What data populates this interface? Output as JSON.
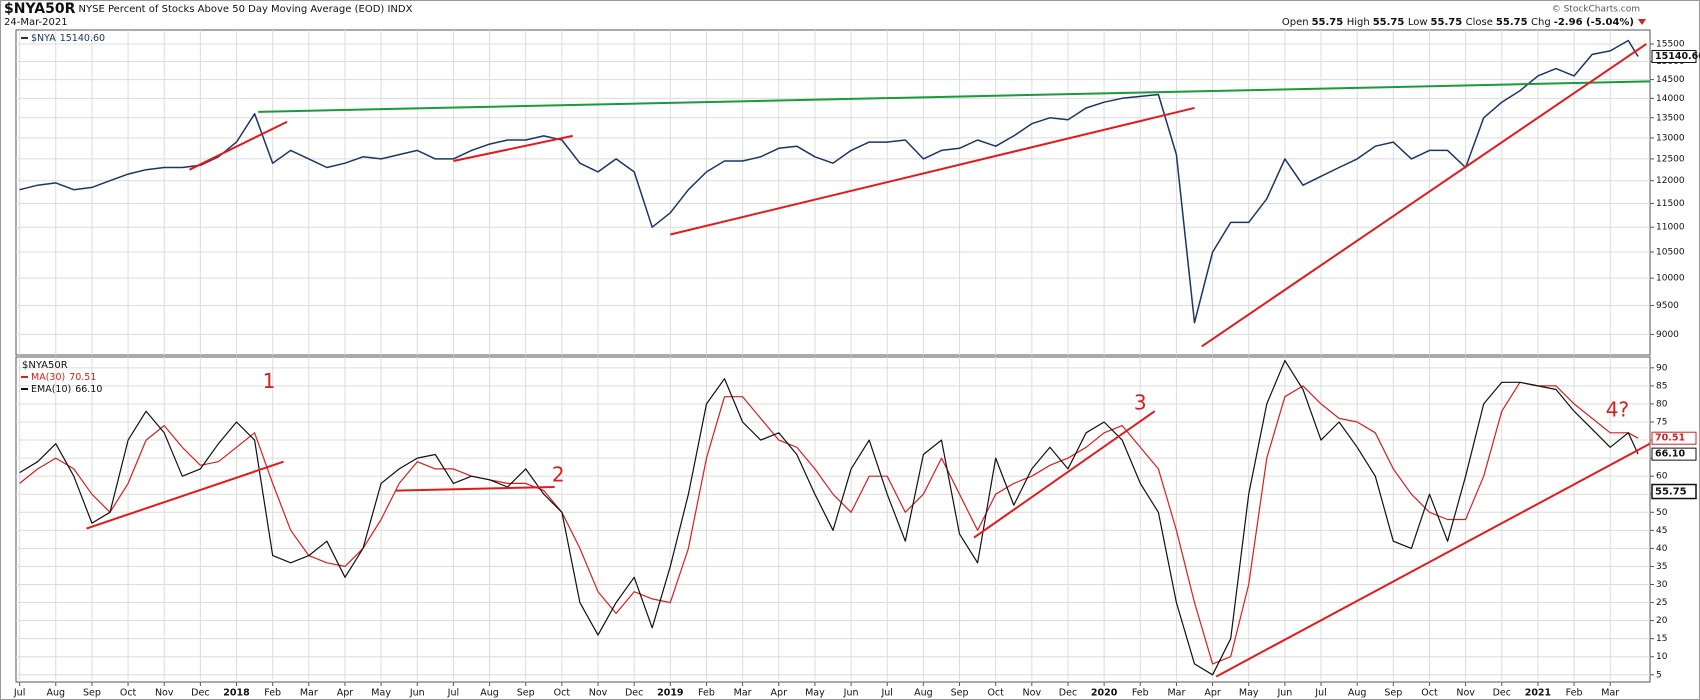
{
  "header": {
    "symbol": "$NYA50R",
    "description": "NYSE Percent of Stocks Above 50 Day Moving Average (EOD)",
    "exchange": "INDX",
    "date": "24-Mar-2021",
    "quote": [
      {
        "label": "Open",
        "value": 55.75
      },
      {
        "label": "High",
        "value": 55.75
      },
      {
        "label": "Low",
        "value": 55.75
      },
      {
        "label": "Close",
        "value": 55.75
      },
      {
        "label": "Chg",
        "value": "-2.96 (-5.04%)"
      }
    ],
    "credit": "© StockCharts.com"
  },
  "chart_data": [
    {
      "type": "line",
      "log_scale": true,
      "grid": true,
      "x": [
        0,
        0.5,
        1,
        1.5,
        2,
        2.5,
        3,
        3.5,
        4,
        4.5,
        5,
        5.5,
        6,
        6.5,
        7,
        7.5,
        8,
        8.5,
        9,
        9.5,
        10,
        10.5,
        11,
        11.5,
        12,
        12.5,
        13,
        13.5,
        14,
        14.5,
        15,
        15.5,
        16,
        16.5,
        17,
        17.5,
        18,
        18.5,
        19,
        19.5,
        20,
        20.5,
        21,
        21.5,
        22,
        22.5,
        23,
        23.5,
        24,
        24.5,
        25,
        25.5,
        26,
        26.5,
        27,
        27.5,
        28,
        28.5,
        29,
        29.5,
        30,
        30.5,
        31,
        31.5,
        32,
        32.5,
        33,
        33.5,
        34,
        34.5,
        35,
        35.5,
        36,
        36.5,
        37,
        37.5,
        38,
        38.5,
        39,
        39.5,
        40,
        40.5,
        41,
        41.5,
        42,
        42.5,
        43,
        43.5,
        44,
        44.5,
        44.77
      ],
      "xlim": [
        -0.1,
        45.1
      ],
      "ylim": [
        8660,
        15910
      ],
      "yticks": [
        9000,
        9500,
        10000,
        10500,
        11000,
        11500,
        12000,
        12500,
        13000,
        13500,
        14000,
        14500,
        15000,
        15500
      ],
      "series": [
        {
          "name": "$NYA",
          "color": "#1c3566",
          "last_label": "15140.60",
          "values": [
            11800,
            11900,
            11950,
            11800,
            11850,
            12000,
            12150,
            12250,
            12300,
            12300,
            12350,
            12550,
            12900,
            13600,
            12400,
            12700,
            12500,
            12300,
            12400,
            12550,
            12500,
            12600,
            12700,
            12500,
            12500,
            12700,
            12850,
            12950,
            12950,
            13050,
            12950,
            12400,
            12200,
            12500,
            12200,
            11000,
            11300,
            11800,
            12200,
            12450,
            12450,
            12550,
            12750,
            12800,
            12550,
            12400,
            12700,
            12900,
            12900,
            12950,
            12500,
            12700,
            12750,
            12950,
            12800,
            13050,
            13350,
            13500,
            13450,
            13750,
            13900,
            14000,
            14050,
            14100,
            12600,
            9200,
            10500,
            11100,
            11100,
            11600,
            12500,
            11900,
            12100,
            12300,
            12500,
            12800,
            12900,
            12500,
            12700,
            12700,
            12300,
            13500,
            13900,
            14200,
            14600,
            14800,
            14600,
            15200,
            15300,
            15600,
            15140.6
          ]
        }
      ],
      "trend_lines": [
        {
          "color": "#1a9a3a",
          "x": [
            6.6,
            45.1
          ],
          "values": [
            13650,
            14450
          ]
        },
        {
          "color": "#e31a1c",
          "x": [
            4.7,
            7.4
          ],
          "values": [
            12250,
            13400
          ]
        },
        {
          "color": "#e31a1c",
          "x": [
            12.0,
            15.3
          ],
          "values": [
            12450,
            13050
          ]
        },
        {
          "color": "#e31a1c",
          "x": [
            18.0,
            32.5
          ],
          "values": [
            10850,
            13750
          ]
        },
        {
          "color": "#e31a1c",
          "x": [
            32.7,
            45.0
          ],
          "values": [
            8800,
            15500
          ]
        }
      ]
    },
    {
      "type": "line",
      "title": "$NYA50R",
      "grid": true,
      "x": [
        0,
        0.5,
        1,
        1.5,
        2,
        2.5,
        3,
        3.5,
        4,
        4.5,
        5,
        5.5,
        6,
        6.5,
        7,
        7.5,
        8,
        8.5,
        9,
        9.5,
        10,
        10.5,
        11,
        11.5,
        12,
        12.5,
        13,
        13.5,
        14,
        14.5,
        15,
        15.5,
        16,
        16.5,
        17,
        17.5,
        18,
        18.5,
        19,
        19.5,
        20,
        20.5,
        21,
        21.5,
        22,
        22.5,
        23,
        23.5,
        24,
        24.5,
        25,
        25.5,
        26,
        26.5,
        27,
        27.5,
        28,
        28.5,
        29,
        29.5,
        30,
        30.5,
        31,
        31.5,
        32,
        32.5,
        33,
        33.5,
        34,
        34.5,
        35,
        35.5,
        36,
        36.5,
        37,
        37.5,
        38,
        38.5,
        39,
        39.5,
        40,
        40.5,
        41,
        41.5,
        42,
        42.5,
        43,
        43.5,
        44,
        44.5,
        44.77
      ],
      "xlim": [
        -0.1,
        45.1
      ],
      "ylim": [
        3,
        93
      ],
      "yticks": [
        5,
        10,
        15,
        20,
        25,
        30,
        35,
        40,
        45,
        50,
        55,
        60,
        65,
        70,
        75,
        80,
        85,
        90
      ],
      "xticks": [
        {
          "value": 0,
          "label": "Jul"
        },
        {
          "value": 1,
          "label": "Aug"
        },
        {
          "value": 2,
          "label": "Sep"
        },
        {
          "value": 3,
          "label": "Oct"
        },
        {
          "value": 4,
          "label": "Nov"
        },
        {
          "value": 5,
          "label": "Dec"
        },
        {
          "value": 6,
          "label": "2018"
        },
        {
          "value": 7,
          "label": "Feb"
        },
        {
          "value": 8,
          "label": "Mar"
        },
        {
          "value": 9,
          "label": "Apr"
        },
        {
          "value": 10,
          "label": "May"
        },
        {
          "value": 11,
          "label": "Jun"
        },
        {
          "value": 12,
          "label": "Jul"
        },
        {
          "value": 13,
          "label": "Aug"
        },
        {
          "value": 14,
          "label": "Sep"
        },
        {
          "value": 15,
          "label": "Oct"
        },
        {
          "value": 16,
          "label": "Nov"
        },
        {
          "value": 17,
          "label": "Dec"
        },
        {
          "value": 18,
          "label": "2019"
        },
        {
          "value": 19,
          "label": "Feb"
        },
        {
          "value": 20,
          "label": "Mar"
        },
        {
          "value": 21,
          "label": "Apr"
        },
        {
          "value": 22,
          "label": "May"
        },
        {
          "value": 23,
          "label": "Jun"
        },
        {
          "value": 24,
          "label": "Jul"
        },
        {
          "value": 25,
          "label": "Aug"
        },
        {
          "value": 26,
          "label": "Sep"
        },
        {
          "value": 27,
          "label": "Oct"
        },
        {
          "value": 28,
          "label": "Nov"
        },
        {
          "value": 29,
          "label": "Dec"
        },
        {
          "value": 30,
          "label": "2020"
        },
        {
          "value": 31,
          "label": "Feb"
        },
        {
          "value": 32,
          "label": "Mar"
        },
        {
          "value": 33,
          "label": "Apr"
        },
        {
          "value": 34,
          "label": "May"
        },
        {
          "value": 35,
          "label": "Jun"
        },
        {
          "value": 36,
          "label": "Jul"
        },
        {
          "value": 37,
          "label": "Aug"
        },
        {
          "value": 38,
          "label": "Sep"
        },
        {
          "value": 39,
          "label": "Oct"
        },
        {
          "value": 40,
          "label": "Nov"
        },
        {
          "value": 41,
          "label": "Dec"
        },
        {
          "value": 42,
          "label": "2021"
        },
        {
          "value": 43,
          "label": "Feb"
        },
        {
          "value": 44,
          "label": "Mar"
        }
      ],
      "series": [
        {
          "name": "MA(30)",
          "color": "#d42020",
          "last_label": "70.51",
          "values": [
            58,
            62,
            65,
            62,
            55,
            50,
            58,
            70,
            74,
            68,
            63,
            64,
            68,
            72,
            58,
            45,
            38,
            36,
            35,
            40,
            48,
            58,
            64,
            62,
            62,
            60,
            59,
            58,
            58,
            56,
            50,
            40,
            28,
            22,
            28,
            26,
            25,
            40,
            65,
            82,
            82,
            76,
            70,
            68,
            62,
            55,
            50,
            60,
            60,
            50,
            55,
            65,
            55,
            45,
            55,
            58,
            60,
            63,
            65,
            68,
            72,
            74,
            68,
            62,
            45,
            25,
            8,
            10,
            30,
            65,
            82,
            85,
            80,
            76,
            75,
            72,
            62,
            55,
            50,
            48,
            48,
            60,
            78,
            86,
            85,
            85,
            80,
            76,
            72,
            72,
            70.51
          ]
        },
        {
          "name": "EMA(10)",
          "color": "#111111",
          "last_label": "66.10",
          "values": [
            61,
            64,
            69,
            60,
            47,
            50,
            70,
            78,
            72,
            60,
            62,
            69,
            75,
            70,
            38,
            36,
            38,
            42,
            32,
            40,
            58,
            62,
            65,
            66,
            58,
            60,
            59,
            57,
            62,
            55,
            50,
            25,
            16,
            25,
            32,
            18,
            35,
            55,
            80,
            87,
            75,
            70,
            72,
            66,
            55,
            45,
            62,
            70,
            55,
            42,
            66,
            70,
            44,
            36,
            65,
            52,
            62,
            68,
            62,
            72,
            75,
            70,
            58,
            50,
            25,
            8,
            5,
            15,
            55,
            80,
            92,
            84,
            70,
            75,
            68,
            60,
            42,
            40,
            55,
            42,
            60,
            80,
            86,
            86,
            85,
            84,
            78,
            73,
            68,
            72,
            66.1
          ]
        }
      ],
      "trend_lines": [
        {
          "color": "#e31a1c",
          "x": [
            1.85,
            7.3
          ],
          "values": [
            45.5,
            64
          ]
        },
        {
          "color": "#e31a1c",
          "x": [
            10.4,
            14.8
          ],
          "values": [
            56,
            57
          ]
        },
        {
          "color": "#e31a1c",
          "x": [
            26.4,
            31.4
          ],
          "values": [
            43,
            78
          ]
        },
        {
          "color": "#e31a1c",
          "x": [
            33.1,
            45.1
          ],
          "values": [
            4.5,
            69
          ]
        }
      ],
      "annotations": [
        "1",
        "2",
        "3",
        "4?"
      ]
    }
  ]
}
